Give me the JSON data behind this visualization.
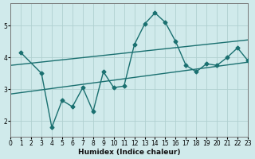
{
  "xlabel": "Humidex (Indice chaleur)",
  "bg_color": "#d0eaeb",
  "line_color": "#1a7070",
  "grid_color": "#b0d0d0",
  "xlim": [
    0,
    23
  ],
  "ylim": [
    1.5,
    5.7
  ],
  "xticks": [
    0,
    1,
    2,
    3,
    4,
    5,
    6,
    7,
    8,
    9,
    10,
    11,
    12,
    13,
    14,
    15,
    16,
    17,
    18,
    19,
    20,
    21,
    22,
    23
  ],
  "yticks": [
    2,
    3,
    4,
    5
  ],
  "main_line_x": [
    1,
    3,
    4,
    5,
    6,
    7,
    8,
    9,
    10,
    11,
    12,
    13,
    14,
    15,
    16,
    17,
    18,
    19,
    20,
    21,
    22,
    23
  ],
  "main_line_y": [
    4.15,
    3.5,
    1.8,
    2.65,
    2.45,
    3.05,
    2.3,
    3.55,
    3.05,
    3.1,
    4.4,
    5.05,
    5.4,
    5.1,
    4.5,
    3.75,
    3.55,
    3.8,
    3.75,
    4.0,
    4.3,
    3.9
  ],
  "upper_line_x": [
    0,
    23
  ],
  "upper_line_y": [
    3.75,
    4.55
  ],
  "lower_line_x": [
    0,
    23
  ],
  "lower_line_y": [
    2.85,
    3.85
  ],
  "marker": "D",
  "marker_size": 2.5,
  "line_width": 1.0
}
